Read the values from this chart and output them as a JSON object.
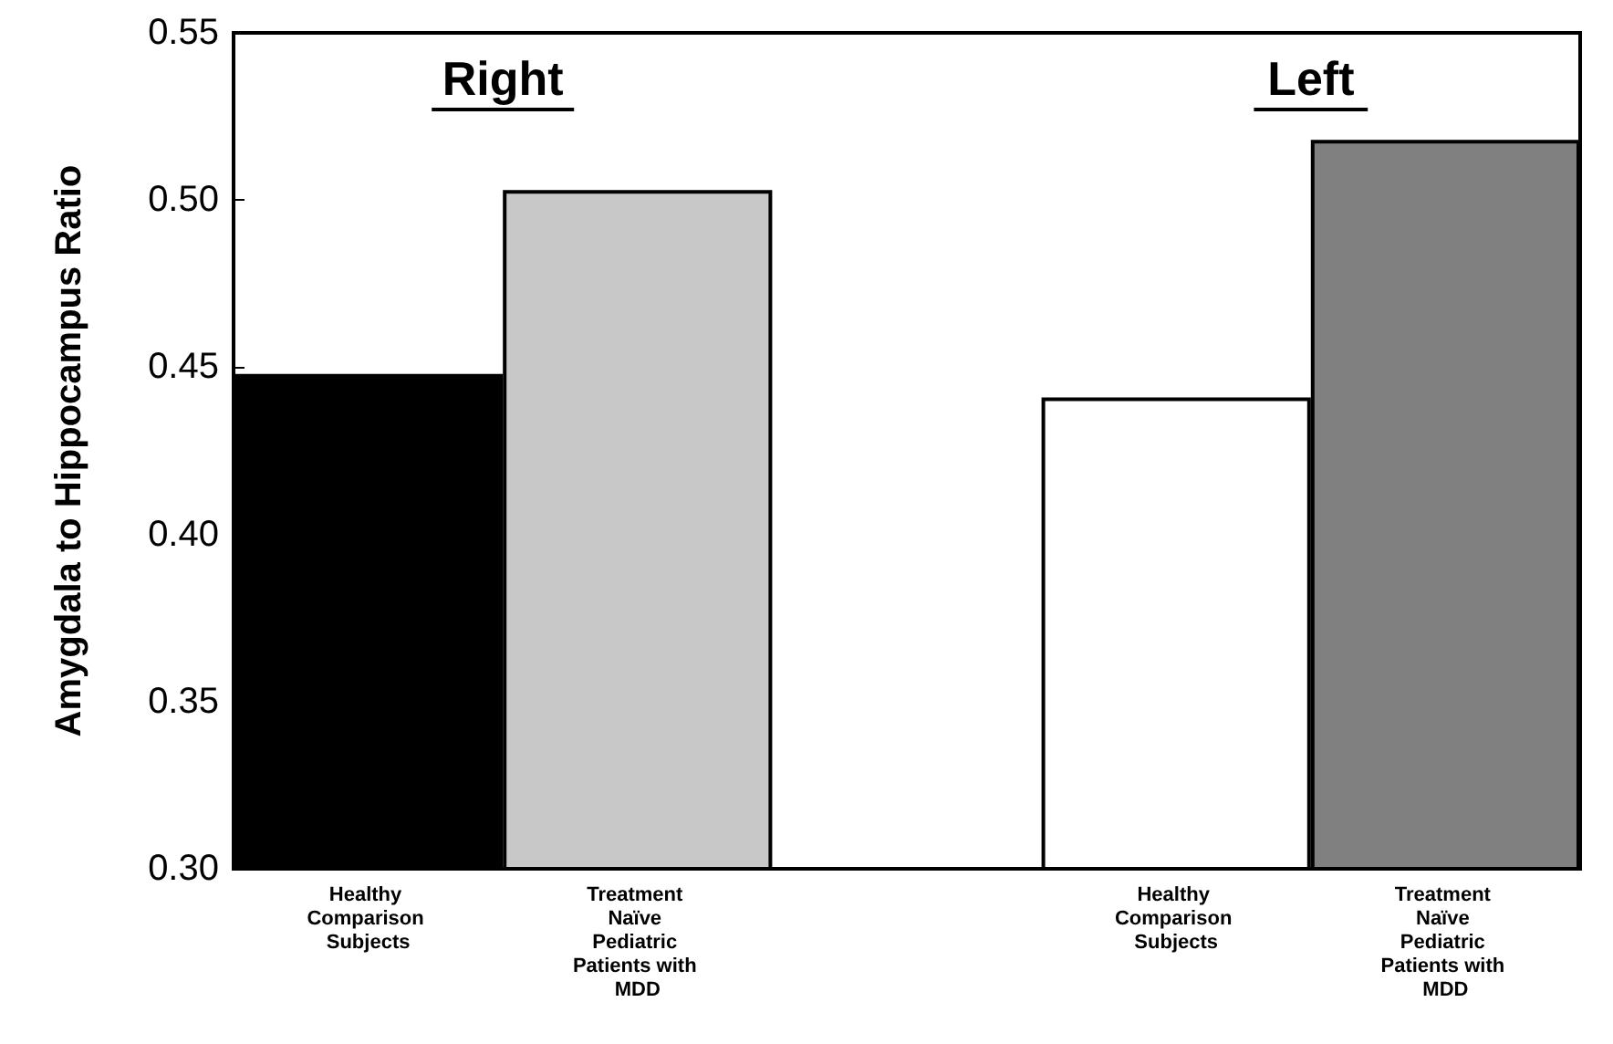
{
  "chart_data": {
    "type": "bar",
    "ylabel": "Amygdala to Hippocampus Ratio",
    "categories": [
      "Healthy Comparison Subjects",
      "Treatment Naïve Pediatric Patients with MDD",
      null,
      "Healthy Comparison Subjects",
      "Treatment Naïve Pediatric Patients with MDD"
    ],
    "values": [
      0.448,
      0.503,
      null,
      0.441,
      0.518
    ],
    "colors": [
      "#000000",
      "#c8c8c8",
      "#ffffff",
      "#ffffff",
      "#808080"
    ],
    "ylim": [
      0.3,
      0.55
    ],
    "yticks": [
      {
        "value": 0.3,
        "label": "0.30"
      },
      {
        "value": 0.35,
        "label": "0.35"
      },
      {
        "value": 0.4,
        "label": "0.40"
      },
      {
        "value": 0.45,
        "label": "0.45"
      },
      {
        "value": 0.5,
        "label": "0.50"
      },
      {
        "value": 0.55,
        "label": "0.55"
      }
    ],
    "annotations": [
      "Right",
      "Left"
    ],
    "grid": false
  }
}
